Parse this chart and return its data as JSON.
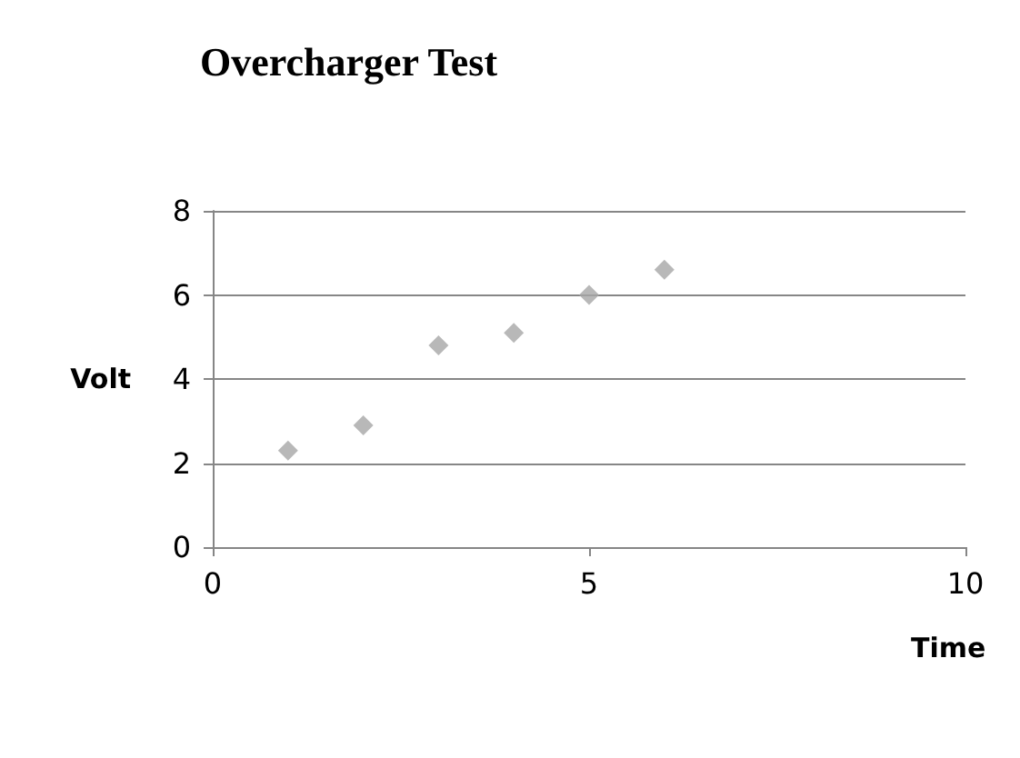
{
  "chart_data": {
    "type": "scatter",
    "title": "Overcharger Test",
    "xlabel": "Time",
    "ylabel": "Volt",
    "x": [
      1,
      2,
      3,
      4,
      5,
      6
    ],
    "values": [
      2.3,
      2.9,
      4.8,
      5.1,
      6.0,
      6.6
    ],
    "color": "#a6a6a6",
    "marker": "diamond",
    "grid": "y",
    "xlim": [
      0,
      10
    ],
    "xticks": [
      0,
      5,
      10
    ],
    "ylim": [
      0,
      8
    ],
    "yticks": [
      0,
      2,
      4,
      6,
      8
    ]
  }
}
